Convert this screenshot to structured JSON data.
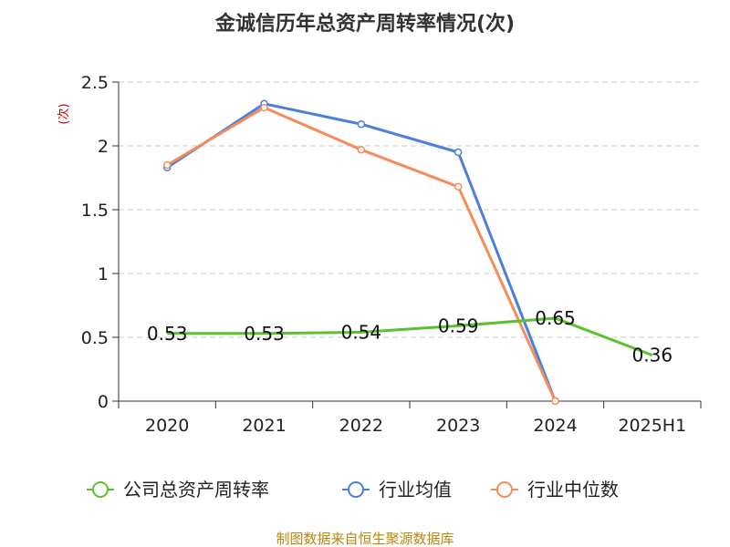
{
  "chart_data": {
    "type": "line",
    "title": "金诚信历年总资产周转率情况(次)",
    "ylabel": "(次)",
    "xlabel": "",
    "categories": [
      "2020",
      "2021",
      "2022",
      "2023",
      "2024",
      "2025H1"
    ],
    "y_ticks": [
      "0",
      "0.5",
      "1",
      "1.5",
      "2",
      "2.5"
    ],
    "ylim": [
      0,
      2.5
    ],
    "grid": true,
    "legend_position": "bottom",
    "series": [
      {
        "name": "公司总资产周转率",
        "color": "#5cc22b",
        "values": [
          0.53,
          0.53,
          0.54,
          0.59,
          0.65,
          0.36
        ],
        "labels": [
          "0.53",
          "0.53",
          "0.54",
          "0.59",
          "0.65",
          "0.36"
        ]
      },
      {
        "name": "行业均值",
        "color": "#4a7fdc",
        "values": [
          1.83,
          2.33,
          2.17,
          1.95,
          0.0,
          null
        ]
      },
      {
        "name": "行业中位数",
        "color": "#f58c5a",
        "values": [
          1.85,
          2.3,
          1.97,
          1.68,
          0.0,
          null
        ]
      }
    ]
  },
  "source": "制图数据来自恒生聚源数据库"
}
